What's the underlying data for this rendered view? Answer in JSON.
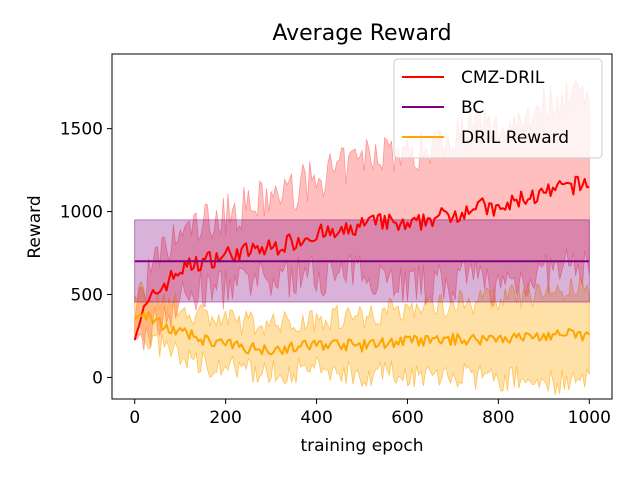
{
  "chart_data": {
    "type": "line",
    "title": "Average Reward",
    "xlabel": "training epoch",
    "ylabel": "Reward",
    "xlim": [
      -50,
      1050
    ],
    "ylim": [
      -130,
      1950
    ],
    "xticks": [
      0,
      200,
      400,
      600,
      800,
      1000
    ],
    "yticks": [
      0,
      500,
      1000,
      1500
    ],
    "legend_position": "top-right",
    "legend": [
      "CMZ-DRIL",
      "BC",
      "DRIL Reward"
    ],
    "colors": {
      "CMZ-DRIL": "#ff0000",
      "BC": "#800080",
      "DRIL Reward": "#ffa500"
    },
    "series": [
      {
        "name": "CMZ-DRIL",
        "color": "#ff0000",
        "band_color": "#ff6666",
        "x": [
          0,
          25,
          50,
          100,
          150,
          200,
          250,
          300,
          350,
          400,
          450,
          500,
          550,
          600,
          650,
          700,
          750,
          800,
          850,
          900,
          950,
          1000
        ],
        "y": [
          280,
          420,
          520,
          650,
          700,
          740,
          760,
          780,
          820,
          870,
          860,
          920,
          940,
          900,
          960,
          980,
          1040,
          1000,
          1080,
          1100,
          1150,
          1170
        ],
        "lower": [
          150,
          250,
          330,
          470,
          520,
          540,
          560,
          580,
          610,
          630,
          600,
          640,
          620,
          560,
          560,
          560,
          600,
          540,
          600,
          620,
          650,
          680
        ],
        "upper": [
          400,
          580,
          700,
          860,
          930,
          980,
          1030,
          1080,
          1130,
          1200,
          1250,
          1320,
          1380,
          1330,
          1400,
          1460,
          1520,
          1490,
          1570,
          1640,
          1700,
          1760
        ]
      },
      {
        "name": "BC",
        "color": "#800080",
        "band_color": "#800080",
        "x": [
          0,
          1000
        ],
        "y": [
          700,
          700
        ],
        "lower": [
          455,
          455
        ],
        "upper": [
          950,
          950
        ]
      },
      {
        "name": "DRIL Reward",
        "color": "#ffa500",
        "band_color": "#ffa500",
        "x": [
          0,
          25,
          50,
          100,
          150,
          200,
          250,
          300,
          350,
          400,
          450,
          500,
          550,
          600,
          650,
          700,
          750,
          800,
          850,
          900,
          950,
          1000
        ],
        "y": [
          360,
          380,
          330,
          270,
          230,
          200,
          180,
          170,
          180,
          200,
          200,
          190,
          210,
          220,
          220,
          230,
          230,
          240,
          240,
          250,
          260,
          250
        ],
        "lower": [
          250,
          240,
          200,
          130,
          90,
          60,
          40,
          30,
          40,
          50,
          40,
          20,
          30,
          20,
          10,
          10,
          0,
          -10,
          -10,
          -20,
          -30,
          -30
        ],
        "upper": [
          470,
          520,
          470,
          420,
          380,
          340,
          330,
          320,
          330,
          360,
          370,
          370,
          400,
          420,
          430,
          450,
          460,
          480,
          490,
          510,
          530,
          540
        ]
      }
    ]
  }
}
